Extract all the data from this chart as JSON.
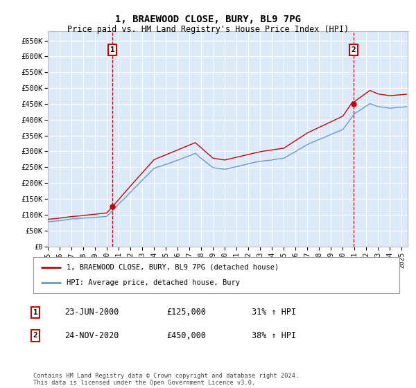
{
  "title": "1, BRAEWOOD CLOSE, BURY, BL9 7PG",
  "subtitle": "Price paid vs. HM Land Registry's House Price Index (HPI)",
  "ylabel_ticks": [
    "£0",
    "£50K",
    "£100K",
    "£150K",
    "£200K",
    "£250K",
    "£300K",
    "£350K",
    "£400K",
    "£450K",
    "£500K",
    "£550K",
    "£600K",
    "£650K"
  ],
  "ytick_values": [
    0,
    50000,
    100000,
    150000,
    200000,
    250000,
    300000,
    350000,
    400000,
    450000,
    500000,
    550000,
    600000,
    650000
  ],
  "ylim": [
    0,
    680000
  ],
  "sale1": {
    "date_num": 2000.48,
    "price": 125000,
    "label": "1",
    "date_str": "23-JUN-2000",
    "pct": "31% ↑ HPI"
  },
  "sale2": {
    "date_num": 2020.9,
    "price": 450000,
    "label": "2",
    "date_str": "24-NOV-2020",
    "pct": "38% ↑ HPI"
  },
  "legend_label_property": "1, BRAEWOOD CLOSE, BURY, BL9 7PG (detached house)",
  "legend_label_hpi": "HPI: Average price, detached house, Bury",
  "footer": "Contains HM Land Registry data © Crown copyright and database right 2024.\nThis data is licensed under the Open Government Licence v3.0.",
  "bg_color": "#dce9f8",
  "line_color_property": "#cc0000",
  "line_color_hpi": "#6699cc",
  "grid_color": "#ffffff",
  "annotation_box_color": "#cc0000",
  "x_start": 1995,
  "x_end": 2025.5,
  "x_ticks": [
    1995,
    1996,
    1997,
    1998,
    1999,
    2000,
    2001,
    2002,
    2003,
    2004,
    2005,
    2006,
    2007,
    2008,
    2009,
    2010,
    2011,
    2012,
    2013,
    2014,
    2015,
    2016,
    2017,
    2018,
    2019,
    2020,
    2021,
    2022,
    2023,
    2024,
    2025
  ]
}
